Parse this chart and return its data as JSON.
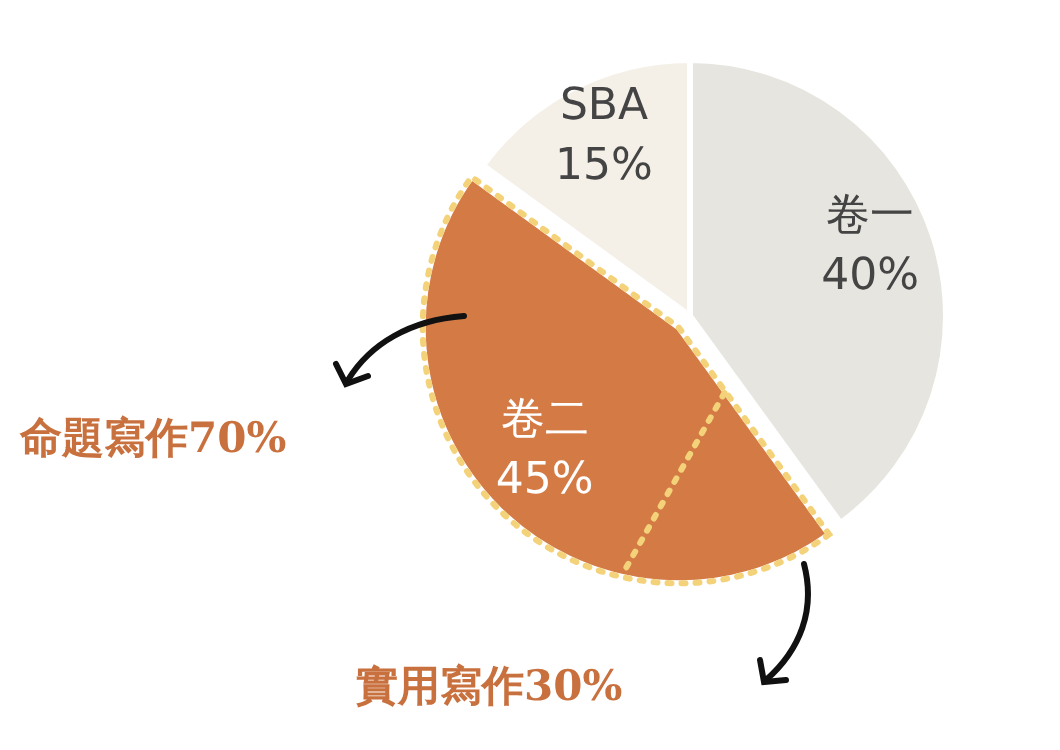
{
  "chart_data": {
    "type": "pie",
    "categories": [
      "卷一",
      "卷二",
      "SBA"
    ],
    "values": [
      40,
      45,
      15
    ],
    "colors": [
      "#e7e5df",
      "#d47b45",
      "#f4efe7"
    ],
    "value_labels": [
      "40%",
      "45%",
      "15%"
    ],
    "annotations": [
      "命題寫作70%",
      "實用寫作30%"
    ]
  }
}
